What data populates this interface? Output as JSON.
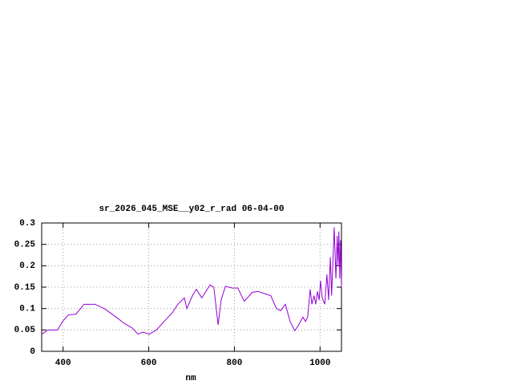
{
  "chart_data": {
    "type": "line",
    "title": "sr_2026_045_MSE__y02_r_rad 06-04-00",
    "x_label": "nm",
    "x": [
      350,
      365,
      387,
      399,
      412,
      430,
      449,
      474,
      496,
      524,
      543,
      561,
      575,
      586,
      601,
      618,
      636,
      655,
      668,
      683,
      689,
      702,
      711,
      724,
      743,
      752,
      762,
      769,
      779,
      795,
      808,
      823,
      842,
      855,
      870,
      885,
      898,
      908,
      919,
      930,
      941,
      949,
      960,
      966,
      971,
      977,
      981,
      986,
      990,
      994,
      998,
      1001,
      1005,
      1011,
      1016,
      1020,
      1024,
      1027,
      1033,
      1037,
      1040,
      1042,
      1044,
      1046,
      1048,
      1050
    ],
    "values": [
      0.04,
      0.05,
      0.05,
      0.07,
      0.085,
      0.087,
      0.11,
      0.11,
      0.1,
      0.08,
      0.065,
      0.055,
      0.04,
      0.045,
      0.04,
      0.05,
      0.07,
      0.09,
      0.11,
      0.125,
      0.1,
      0.13,
      0.145,
      0.125,
      0.155,
      0.15,
      0.062,
      0.12,
      0.152,
      0.148,
      0.148,
      0.117,
      0.138,
      0.14,
      0.135,
      0.13,
      0.1,
      0.095,
      0.11,
      0.07,
      0.048,
      0.06,
      0.08,
      0.07,
      0.08,
      0.145,
      0.11,
      0.13,
      0.11,
      0.14,
      0.12,
      0.165,
      0.125,
      0.11,
      0.18,
      0.12,
      0.22,
      0.13,
      0.29,
      0.17,
      0.27,
      0.2,
      0.28,
      0.17,
      0.26,
      0.15
    ],
    "color": "#9400d3",
    "xlim": [
      350,
      1050
    ],
    "xticks": [
      400,
      600,
      800,
      1000
    ],
    "ylim": [
      0,
      0.3
    ],
    "yticks": [
      0,
      0.05,
      0.1,
      0.15,
      0.2,
      0.25,
      0.3
    ],
    "grid": true
  }
}
